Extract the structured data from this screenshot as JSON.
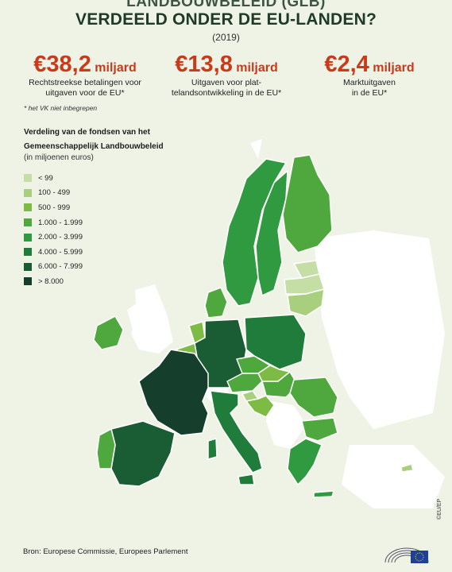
{
  "header": {
    "cut_title": "LANDBOUWBELEID (GLB)",
    "title": "VERDEELD ONDER DE EU-LANDEN?",
    "year": "(2019)"
  },
  "stats": [
    {
      "value": "€38,2",
      "unit": "miljard",
      "desc_line1": "Rechtstreekse betalingen voor",
      "desc_line2": "uitgaven voor de EU*"
    },
    {
      "value": "€13,8",
      "unit": "miljard",
      "desc_line1": "Uitgaven voor plat-",
      "desc_line2": "telandsontwikkeling in de EU*"
    },
    {
      "value": "€2,4",
      "unit": "miljard",
      "desc_line1": "Marktuitgaven",
      "desc_line2": "in de EU*"
    }
  ],
  "note": "* het VK niet inbegrepen",
  "legend": {
    "title_line1": "Verdeling van de fondsen van het",
    "title_line2": "Gemeenschappelijk Landbouwbeleid",
    "subtitle": "(in miljoenen euros)",
    "items": [
      {
        "label": "< 99",
        "color": "#c5dea6"
      },
      {
        "label": "100 - 499",
        "color": "#a8cf7e"
      },
      {
        "label": "500 - 999",
        "color": "#7dbb45"
      },
      {
        "label": "1.000 - 1.999",
        "color": "#4fa83d"
      },
      {
        "label": "2.000 - 3.999",
        "color": "#2f9a3f"
      },
      {
        "label": "4.000 - 5.999",
        "color": "#1f7c3a"
      },
      {
        "label": "6.000 - 7.999",
        "color": "#1a5c34"
      },
      {
        "label": "> 8.000",
        "color": "#153f2c"
      }
    ]
  },
  "map_colors": {
    "sea": "#eef3e6",
    "land_nonmember": "#ffffff",
    "border": "#ffffff"
  },
  "source": "Bron: Europese Commissie, Europees Parlement",
  "copyright": "©EU/EP"
}
